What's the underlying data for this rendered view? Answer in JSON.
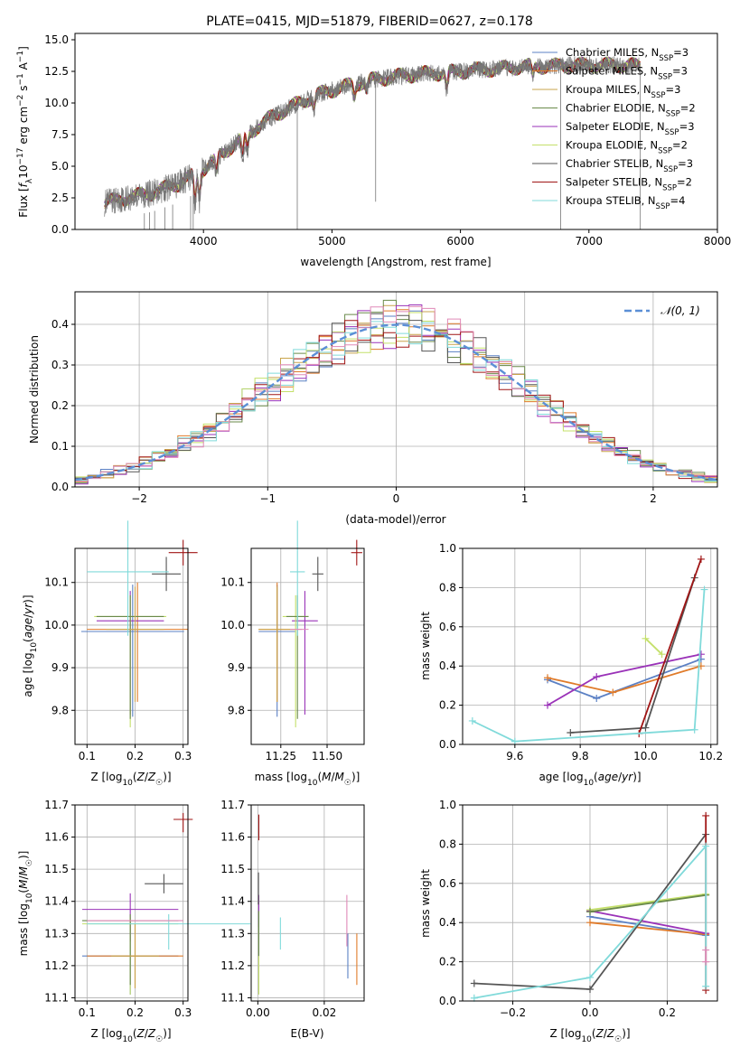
{
  "figure_title": "PLATE=0415, MJD=51879, FIBERID=0627, z=0.178",
  "colors": {
    "chabrier_miles": "#5b80c4",
    "salpeter_miles": "#e07b2a",
    "kroupa_miles": "#c9a44c",
    "chabrier_elodie": "#6a8a4a",
    "salpeter_elodie": "#9a32b8",
    "kroupa_elodie": "#c4e06a",
    "chabrier_stelib": "#555555",
    "salpeter_stelib": "#a01515",
    "kroupa_stelib": "#80dada",
    "normal": "#5b8fd6",
    "pink": "#e08ab8"
  },
  "chart_data": [
    {
      "id": "spectrum",
      "type": "line",
      "title": "PLATE=0415, MJD=51879, FIBERID=0627, z=0.178",
      "xlabel": "wavelength [Angstrom, rest frame]",
      "ylabel": "Flux [fλ10⁻¹⁷ erg cm⁻² s⁻¹ A⁻¹]",
      "xlim": [
        3000,
        8000
      ],
      "ylim": [
        0,
        15.5
      ],
      "xticks": [
        4000,
        5000,
        6000,
        7000,
        8000
      ],
      "xtick_labels": [
        "4000",
        "5000",
        "6000",
        "7000",
        "8000"
      ],
      "yticks": [
        0,
        2.5,
        5,
        7.5,
        10,
        12.5,
        15
      ],
      "ytick_labels": [
        "0.0",
        "2.5",
        "5.0",
        "7.5",
        "10.0",
        "12.5",
        "15.0"
      ],
      "grid": false,
      "legend_position": "top-right",
      "continuum": {
        "x": [
          3230,
          3400,
          3600,
          3800,
          3950,
          4100,
          4300,
          4500,
          4700,
          4900,
          5100,
          5300,
          5500,
          5700,
          5900,
          6100,
          6300,
          6500,
          6700,
          6900,
          7100,
          7300,
          7400
        ],
        "y": [
          2.1,
          2.5,
          2.9,
          3.6,
          4.4,
          5.6,
          7.2,
          8.7,
          9.8,
          10.7,
          11.3,
          11.8,
          12.1,
          12.3,
          12.4,
          12.6,
          12.7,
          12.9,
          12.9,
          13.0,
          13.0,
          13.0,
          12.9
        ]
      },
      "absorption_lines": [
        {
          "x": 3934,
          "depth": 2.5
        },
        {
          "x": 3969,
          "depth": 2.2
        },
        {
          "x": 4102,
          "depth": 1.5
        },
        {
          "x": 4305,
          "depth": 1.8
        },
        {
          "x": 4340,
          "depth": 1.5
        },
        {
          "x": 4861,
          "depth": 1.0
        },
        {
          "x": 5175,
          "depth": 1.2
        },
        {
          "x": 5270,
          "depth": 0.8
        },
        {
          "x": 5893,
          "depth": 1.5
        },
        {
          "x": 6563,
          "depth": 1.0
        }
      ],
      "spikes": [
        {
          "x": 4730,
          "y": 0
        },
        {
          "x": 5340,
          "y": 2.2
        },
        {
          "x": 6780,
          "y": 0
        },
        {
          "x": 7400,
          "y": 0
        }
      ],
      "series": [
        {
          "name": "Chabrier MILES, N_SSP=3",
          "label_main": "Chabrier MILES, N",
          "label_sub": "SSP",
          "label_tail": "=3",
          "color": "#5b80c4"
        },
        {
          "name": "Salpeter MILES, N_SSP=3",
          "label_main": "Salpeter MILES, N",
          "label_sub": "SSP",
          "label_tail": "=3",
          "color": "#e07b2a"
        },
        {
          "name": "Kroupa MILES, N_SSP=3",
          "label_main": "Kroupa MILES, N",
          "label_sub": "SSP",
          "label_tail": "=3",
          "color": "#c9a44c"
        },
        {
          "name": "Chabrier ELODIE, N_SSP=2",
          "label_main": "Chabrier ELODIE, N",
          "label_sub": "SSP",
          "label_tail": "=2",
          "color": "#6a8a4a"
        },
        {
          "name": "Salpeter ELODIE, N_SSP=3",
          "label_main": "Salpeter ELODIE, N",
          "label_sub": "SSP",
          "label_tail": "=3",
          "color": "#9a32b8"
        },
        {
          "name": "Kroupa ELODIE, N_SSP=2",
          "label_main": "Kroupa ELODIE, N",
          "label_sub": "SSP",
          "label_tail": "=2",
          "color": "#c4e06a"
        },
        {
          "name": "Chabrier STELIB, N_SSP=3",
          "label_main": "Chabrier STELIB, N",
          "label_sub": "SSP",
          "label_tail": "=3",
          "color": "#555555"
        },
        {
          "name": "Salpeter STELIB, N_SSP=2",
          "label_main": "Salpeter STELIB, N",
          "label_sub": "SSP",
          "label_tail": "=2",
          "color": "#a01515"
        },
        {
          "name": "Kroupa STELIB, N_SSP=4",
          "label_main": "Kroupa STELIB, N",
          "label_sub": "SSP",
          "label_tail": "=4",
          "color": "#80dada"
        }
      ]
    },
    {
      "id": "residuals",
      "type": "histogram",
      "xlabel": "(data-model)/error",
      "ylabel": "Normed distribution",
      "xlim": [
        -2.5,
        2.5
      ],
      "ylim": [
        0,
        0.48
      ],
      "xticks": [
        -2,
        -1,
        0,
        1,
        2
      ],
      "xtick_labels": [
        "−2",
        "−1",
        "0",
        "1",
        "2"
      ],
      "yticks": [
        0,
        0.1,
        0.2,
        0.3,
        0.4
      ],
      "ytick_labels": [
        "0.0",
        "0.1",
        "0.2",
        "0.3",
        "0.4"
      ],
      "grid": true,
      "bin_width": 0.1,
      "legend": {
        "label": "𝒩(0, 1)",
        "position": "top-right",
        "color": "#5b8fd6"
      },
      "normal_curve": {
        "mean": 0,
        "sigma": 1
      }
    },
    {
      "id": "age_vs_Z",
      "type": "errorbar",
      "xlabel": "Z [log10(Z/Z☉)]",
      "ylabel": "age  [log10(age/yr)]",
      "xlim": [
        0.075,
        0.31
      ],
      "ylim": [
        9.72,
        10.18
      ],
      "xticks": [
        0.1,
        0.2,
        0.3
      ],
      "xtick_labels": [
        "0.1",
        "0.2",
        "0.3"
      ],
      "yticks": [
        9.8,
        9.9,
        10.0,
        10.1
      ],
      "ytick_labels": [
        "9.8",
        "9.9",
        "10.0",
        "10.1"
      ],
      "grid": true,
      "points": [
        {
          "x": 0.195,
          "y": 9.985,
          "xerr": 0.107,
          "yerr": [
            0.2,
            0.11
          ],
          "color": "#5b80c4"
        },
        {
          "x": 0.205,
          "y": 9.99,
          "xerr": 0.105,
          "yerr": [
            0.17,
            0.11
          ],
          "color": "#e07b2a"
        },
        {
          "x": 0.19,
          "y": 10.01,
          "xerr": 0.07,
          "yerr": [
            0.22,
            0.07
          ],
          "color": "#9a32b8"
        },
        {
          "x": 0.19,
          "y": 10.02,
          "xerr": 0.075,
          "yerr": [
            0.26,
            0.05
          ],
          "color": "#c4e06a"
        },
        {
          "x": 0.19,
          "y": 10.02,
          "xerr": 0.07,
          "yerr": [
            0.24,
            0.05
          ],
          "color": "#6a8a4a"
        },
        {
          "x": 0.2,
          "y": 9.99,
          "xerr": 0.06,
          "yerr": [
            0.17,
            0.1
          ],
          "color": "#c9a44c"
        },
        {
          "x": 0.265,
          "y": 10.12,
          "xerr": 0.03,
          "yerr": [
            0.04,
            0.04
          ],
          "color": "#555555"
        },
        {
          "x": 0.3,
          "y": 10.17,
          "xerr": 0.03,
          "yerr": [
            0.03,
            0.03
          ],
          "color": "#a01515"
        },
        {
          "x": 0.185,
          "y": 10.125,
          "xerr": 0.085,
          "yerr": [
            0.15,
            0.12
          ],
          "color": "#80dada"
        }
      ]
    },
    {
      "id": "age_vs_mass",
      "type": "errorbar",
      "xlabel": "mass [log10(M/M☉)]",
      "ylabel": "",
      "xlim": [
        11.09,
        11.7
      ],
      "ylim": [
        9.72,
        10.18
      ],
      "xticks": [
        11.25,
        11.5
      ],
      "xtick_labels": [
        "11.25",
        "11.50"
      ],
      "yticks": [
        9.8,
        9.9,
        10.0,
        10.1
      ],
      "ytick_labels": [
        "9.8",
        "9.9",
        "10.0",
        "10.1"
      ],
      "grid": true,
      "points": [
        {
          "x": 11.23,
          "y": 9.985,
          "xerr": 0.1,
          "yerr": [
            0.2,
            0.11
          ],
          "color": "#5b80c4"
        },
        {
          "x": 11.23,
          "y": 9.99,
          "xerr": 0.1,
          "yerr": [
            0.17,
            0.11
          ],
          "color": "#e07b2a"
        },
        {
          "x": 11.38,
          "y": 10.01,
          "xerr": 0.07,
          "yerr": [
            0.22,
            0.07
          ],
          "color": "#9a32b8"
        },
        {
          "x": 11.33,
          "y": 10.02,
          "xerr": 0.07,
          "yerr": [
            0.26,
            0.05
          ],
          "color": "#c4e06a"
        },
        {
          "x": 11.34,
          "y": 10.02,
          "xerr": 0.06,
          "yerr": [
            0.24,
            0.05
          ],
          "color": "#6a8a4a"
        },
        {
          "x": 11.23,
          "y": 9.99,
          "xerr": 0.1,
          "yerr": [
            0.17,
            0.1
          ],
          "color": "#c9a44c"
        },
        {
          "x": 11.45,
          "y": 10.12,
          "xerr": 0.03,
          "yerr": [
            0.04,
            0.04
          ],
          "color": "#555555"
        },
        {
          "x": 11.66,
          "y": 10.17,
          "xerr": 0.03,
          "yerr": [
            0.03,
            0.03
          ],
          "color": "#a01515"
        },
        {
          "x": 11.34,
          "y": 10.125,
          "xerr": 0.04,
          "yerr": [
            0.15,
            0.12
          ],
          "color": "#80dada"
        },
        {
          "x": 11.35,
          "y": 9.99,
          "xerr": 0.05,
          "yerr": [
            0.0,
            0.0
          ],
          "color": "#e08ab8"
        }
      ]
    },
    {
      "id": "weight_vs_age",
      "type": "line",
      "xlabel": "age  [log10(age/yr)]",
      "ylabel": "mass weight",
      "xlim": [
        9.44,
        10.22
      ],
      "ylim": [
        0,
        1.0
      ],
      "xticks": [
        9.6,
        9.8,
        10.0,
        10.2
      ],
      "xtick_labels": [
        "9.6",
        "9.8",
        "10.0",
        "10.2"
      ],
      "yticks": [
        0,
        0.2,
        0.4,
        0.6,
        0.8,
        1.0
      ],
      "ytick_labels": [
        "0.0",
        "0.2",
        "0.4",
        "0.6",
        "0.8",
        "1.0"
      ],
      "grid": true,
      "series": [
        {
          "color": "#5b80c4",
          "x": [
            9.7,
            9.85,
            10.17
          ],
          "y": [
            0.33,
            0.235,
            0.435
          ]
        },
        {
          "color": "#e07b2a",
          "x": [
            9.7,
            9.9,
            10.17
          ],
          "y": [
            0.34,
            0.265,
            0.4
          ]
        },
        {
          "color": "#9a32b8",
          "x": [
            9.7,
            9.85,
            10.17
          ],
          "y": [
            0.2,
            0.345,
            0.46
          ]
        },
        {
          "color": "#c4e06a",
          "x": [
            10.0,
            10.05
          ],
          "y": [
            0.54,
            0.46
          ]
        },
        {
          "color": "#555555",
          "x": [
            9.77,
            10.0,
            10.15
          ],
          "y": [
            0.06,
            0.085,
            0.85
          ]
        },
        {
          "color": "#a01515",
          "x": [
            9.98,
            10.17
          ],
          "y": [
            0.055,
            0.945
          ]
        },
        {
          "color": "#80dada",
          "x": [
            9.47,
            9.6,
            10.15,
            10.18
          ],
          "y": [
            0.12,
            0.015,
            0.075,
            0.79
          ]
        }
      ]
    },
    {
      "id": "mass_vs_Z",
      "type": "errorbar",
      "xlabel": "Z [log10(Z/Z☉)]",
      "ylabel": "mass [log10(M/M☉)]",
      "xlim": [
        0.075,
        0.31
      ],
      "ylim": [
        11.09,
        11.7
      ],
      "xticks": [
        0.1,
        0.2,
        0.3
      ],
      "xtick_labels": [
        "0.1",
        "0.2",
        "0.3"
      ],
      "yticks": [
        11.1,
        11.2,
        11.3,
        11.4,
        11.5,
        11.6,
        11.7
      ],
      "ytick_labels": [
        "11.1",
        "11.2",
        "11.3",
        "11.4",
        "11.5",
        "11.6",
        "11.7"
      ],
      "grid": true,
      "points": [
        {
          "x": 0.19,
          "y": 11.23,
          "xerr": 0.1,
          "yerr": [
            0.12,
            0.1
          ],
          "color": "#5b80c4"
        },
        {
          "x": 0.2,
          "y": 11.23,
          "xerr": 0.1,
          "yerr": [
            0.1,
            0.1
          ],
          "color": "#e07b2a"
        },
        {
          "x": 0.19,
          "y": 11.375,
          "xerr": 0.1,
          "yerr": [
            0.1,
            0.05
          ],
          "color": "#9a32b8"
        },
        {
          "x": 0.19,
          "y": 11.33,
          "xerr": 0.1,
          "yerr": [
            0.22,
            0.02
          ],
          "color": "#c4e06a"
        },
        {
          "x": 0.19,
          "y": 11.34,
          "xerr": 0.1,
          "yerr": [
            0.2,
            0.02
          ],
          "color": "#6a8a4a"
        },
        {
          "x": 0.2,
          "y": 11.23,
          "xerr": 0.05,
          "yerr": [
            0.1,
            0.1
          ],
          "color": "#c9a44c"
        },
        {
          "x": 0.26,
          "y": 11.455,
          "xerr": 0.04,
          "yerr": [
            0.03,
            0.03
          ],
          "color": "#555555"
        },
        {
          "x": 0.3,
          "y": 11.655,
          "xerr": 0.02,
          "yerr": [
            0.04,
            0.02
          ],
          "color": "#a01515"
        },
        {
          "x": 0.27,
          "y": 11.33,
          "xerr": 0.17,
          "yerr": [
            0.08,
            0.03
          ],
          "color": "#80dada"
        },
        {
          "x": 0.2,
          "y": 11.34,
          "xerr": 0.1,
          "yerr": [
            0.0,
            0.0
          ],
          "color": "#e08ab8"
        }
      ]
    },
    {
      "id": "mass_vs_EBV",
      "type": "errorbar",
      "xlabel": "E(B-V)",
      "ylabel": "",
      "xlim": [
        -0.002,
        0.032
      ],
      "ylim": [
        11.09,
        11.7
      ],
      "xticks": [
        0,
        0.02
      ],
      "xtick_labels": [
        "0.00",
        "0.02"
      ],
      "yticks": [
        11.1,
        11.2,
        11.3,
        11.4,
        11.5,
        11.6,
        11.7
      ],
      "ytick_labels": [
        "11.1",
        "11.2",
        "11.3",
        "11.4",
        "11.5",
        "11.6",
        "11.7"
      ],
      "grid": true,
      "points": [
        {
          "x": 0.0271,
          "y": 11.23,
          "xerr": 0,
          "yerr": [
            0.07,
            0.07
          ],
          "color": "#5b80c4"
        },
        {
          "x": 0.0298,
          "y": 11.22,
          "xerr": 0,
          "yerr": [
            0.08,
            0.08
          ],
          "color": "#e07b2a"
        },
        {
          "x": 0.0003,
          "y": 11.37,
          "xerr": 0,
          "yerr": [
            0.05,
            0.05
          ],
          "color": "#9a32b8"
        },
        {
          "x": 0.0003,
          "y": 11.22,
          "xerr": 0,
          "yerr": [
            0.11,
            0.11
          ],
          "color": "#c4e06a"
        },
        {
          "x": 0.0002,
          "y": 11.44,
          "xerr": 0,
          "yerr": [
            0.05,
            0.05
          ],
          "color": "#555555"
        },
        {
          "x": 0.0003,
          "y": 11.63,
          "xerr": 0,
          "yerr": [
            0.04,
            0.04
          ],
          "color": "#a01515"
        },
        {
          "x": 0.0068,
          "y": 11.3,
          "xerr": 0,
          "yerr": [
            0.05,
            0.05
          ],
          "color": "#80dada"
        },
        {
          "x": 0.0268,
          "y": 11.34,
          "xerr": 0,
          "yerr": [
            0.08,
            0.08
          ],
          "color": "#e08ab8"
        },
        {
          "x": 0.0003,
          "y": 11.3,
          "xerr": 0,
          "yerr": [
            0.07,
            0.07
          ],
          "color": "#6a8a4a"
        }
      ]
    },
    {
      "id": "weight_vs_Z",
      "type": "line",
      "xlabel": "Z [log10(Z/Z☉)]",
      "ylabel": "mass weight",
      "xlim": [
        -0.33,
        0.33
      ],
      "ylim": [
        0,
        1.0
      ],
      "xticks": [
        -0.2,
        0,
        0.2
      ],
      "xtick_labels": [
        "−0.2",
        "0.0",
        "0.2"
      ],
      "yticks": [
        0,
        0.2,
        0.4,
        0.6,
        0.8,
        1.0
      ],
      "ytick_labels": [
        "0.0",
        "0.2",
        "0.4",
        "0.6",
        "0.8",
        "1.0"
      ],
      "grid": true,
      "series": [
        {
          "color": "#5b80c4",
          "x": [
            0.0,
            0.3
          ],
          "y": [
            0.43,
            0.335
          ]
        },
        {
          "color": "#e07b2a",
          "x": [
            0.0,
            0.3
          ],
          "y": [
            0.4,
            0.34
          ]
        },
        {
          "color": "#9a32b8",
          "x": [
            0.0,
            0.3
          ],
          "y": [
            0.46,
            0.345
          ]
        },
        {
          "color": "#c4e06a",
          "x": [
            0.0,
            0.3
          ],
          "y": [
            0.465,
            0.545
          ]
        },
        {
          "color": "#6a8a4a",
          "x": [
            0.0,
            0.3
          ],
          "y": [
            0.455,
            0.54
          ]
        },
        {
          "color": "#555555",
          "x": [
            -0.3,
            0.0,
            0.3
          ],
          "y": [
            0.09,
            0.06,
            0.85
          ]
        },
        {
          "color": "#a01515",
          "x": [
            0.3,
            0.3
          ],
          "y": [
            0.055,
            0.945
          ]
        },
        {
          "color": "#80dada",
          "x": [
            -0.3,
            0.0,
            0.3,
            0.3
          ],
          "y": [
            0.015,
            0.12,
            0.79,
            0.075
          ]
        },
        {
          "color": "#e08ab8",
          "x": [
            0.3,
            0.3
          ],
          "y": [
            0.2,
            0.26
          ]
        }
      ]
    }
  ]
}
